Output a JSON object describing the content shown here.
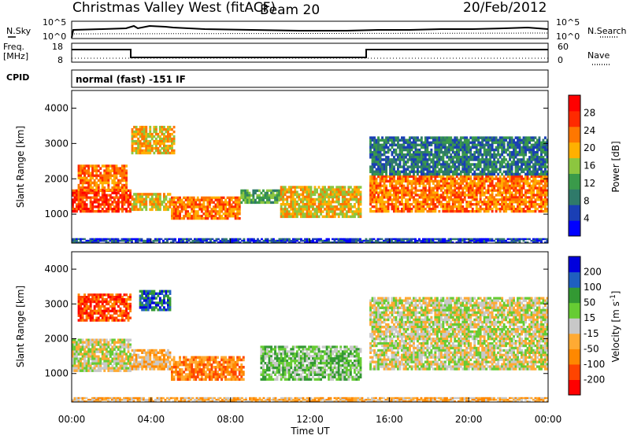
{
  "header": {
    "station": "Christmas Valley West (fitACF)",
    "beam": "Beam 20",
    "date": "20/Feb/2012"
  },
  "side_labels": {
    "nsky": "N.Sky",
    "nsearch": "N.Search",
    "freq": "Freq.",
    "freq_unit": "[MHz]",
    "nave": "Nave",
    "cpid": "CPID"
  },
  "noise_panel": {
    "left_ticks": [
      "10^5",
      "10^0"
    ],
    "right_ticks": [
      "10^5",
      "10^0"
    ]
  },
  "freq_panel": {
    "left_ticks": [
      "18",
      "8"
    ],
    "right_ticks": [
      "60",
      "0"
    ]
  },
  "cpid_text": "normal (fast) -151 IF",
  "chart_data": [
    {
      "type": "heatmap",
      "name_in_image": "Power",
      "colorbar_label": "Power [dB]",
      "colorbar_ticks": [
        "28",
        "24",
        "20",
        "16",
        "12",
        "8",
        "4"
      ],
      "colors": [
        "#0000ff",
        "#1a3fb5",
        "#2f7a6a",
        "#3a9a4a",
        "#8cc63f",
        "#ffb000",
        "#ff7700",
        "#ff2a00",
        "#ff0000"
      ],
      "ylabel": "Slant Range [km]",
      "y_ticks": [
        1000,
        2000,
        3000,
        4000
      ],
      "ylim": [
        180,
        4500
      ],
      "x_ticks": [
        "00:00",
        "04:00",
        "08:00",
        "12:00",
        "16:00",
        "20:00",
        "00:00"
      ],
      "xlim_hours": [
        0,
        24
      ],
      "scatter_bands": [
        {
          "t0": 0.0,
          "t1": 3.0,
          "r0": 1050,
          "r1": 1700,
          "level": 7
        },
        {
          "t0": 0.3,
          "t1": 2.8,
          "r0": 1650,
          "r1": 2400,
          "level": 6
        },
        {
          "t0": 3.0,
          "t1": 5.0,
          "r0": 1100,
          "r1": 1600,
          "level": 5
        },
        {
          "t0": 3.0,
          "t1": 5.2,
          "r0": 2700,
          "r1": 3500,
          "level": 5
        },
        {
          "t0": 5.0,
          "t1": 8.5,
          "r0": 850,
          "r1": 1500,
          "level": 6
        },
        {
          "t0": 8.5,
          "t1": 10.5,
          "r0": 1300,
          "r1": 1700,
          "level": 3
        },
        {
          "t0": 10.5,
          "t1": 14.6,
          "r0": 900,
          "r1": 1800,
          "level": 5
        },
        {
          "t0": 15.0,
          "t1": 24.0,
          "r0": 1050,
          "r1": 2100,
          "level": 6
        },
        {
          "t0": 15.0,
          "t1": 24.0,
          "r0": 2100,
          "r1": 3200,
          "level": 2
        },
        {
          "t0": 0.0,
          "t1": 24.0,
          "r0": 180,
          "r1": 320,
          "level": 1
        }
      ]
    },
    {
      "type": "heatmap",
      "name_in_image": "Velocity",
      "colorbar_label": "Velocity [m s^-1]",
      "colorbar_ticks": [
        "200",
        "100",
        "50",
        "15",
        "-15",
        "-50",
        "-100",
        "-200"
      ],
      "colors": [
        "#ff0000",
        "#ff4400",
        "#ff8800",
        "#ffaa33",
        "#c8c8c8",
        "#66cc33",
        "#339933",
        "#1f5fbf",
        "#0000dd"
      ],
      "ylabel": "Slant Range [km]",
      "y_ticks": [
        1000,
        2000,
        3000,
        4000
      ],
      "ylim": [
        180,
        4500
      ],
      "x_ticks": [
        "00:00",
        "04:00",
        "08:00",
        "12:00",
        "16:00",
        "20:00",
        "00:00"
      ],
      "xlabel": "Time UT",
      "xlim_hours": [
        0,
        24
      ],
      "scatter_bands": [
        {
          "t0": 0.0,
          "t1": 3.0,
          "r0": 1050,
          "r1": 2000,
          "level": 4
        },
        {
          "t0": 0.3,
          "t1": 3.0,
          "r0": 2500,
          "r1": 3300,
          "level": 1
        },
        {
          "t0": 3.0,
          "t1": 5.0,
          "r0": 1100,
          "r1": 1700,
          "level": 3
        },
        {
          "t0": 3.4,
          "t1": 5.0,
          "r0": 2800,
          "r1": 3400,
          "level": 7
        },
        {
          "t0": 5.0,
          "t1": 8.7,
          "r0": 800,
          "r1": 1500,
          "level": 2
        },
        {
          "t0": 9.5,
          "t1": 14.6,
          "r0": 800,
          "r1": 1800,
          "level": 5
        },
        {
          "t0": 15.0,
          "t1": 24.0,
          "r0": 1100,
          "r1": 2100,
          "level": 4
        },
        {
          "t0": 15.0,
          "t1": 24.0,
          "r0": 2100,
          "r1": 3200,
          "level": 4
        },
        {
          "t0": 0.0,
          "t1": 24.0,
          "r0": 180,
          "r1": 320,
          "level": 3
        }
      ]
    }
  ]
}
